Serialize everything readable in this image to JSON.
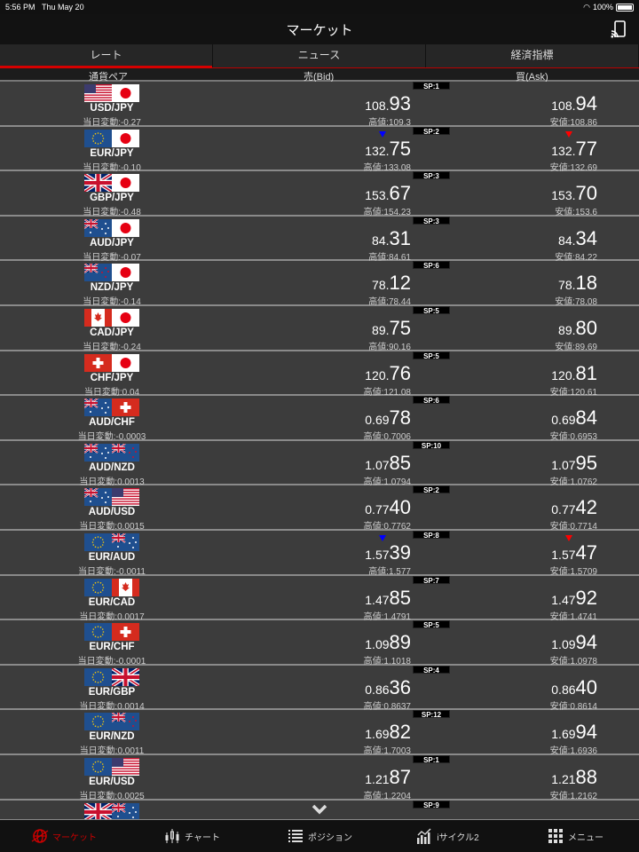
{
  "status": {
    "time": "5:56 PM",
    "date": "Thu May 20",
    "battery": "100%"
  },
  "header": {
    "title": "マーケット",
    "cast_icon": "cast-icon"
  },
  "tabs": [
    {
      "label": "レート",
      "active": true
    },
    {
      "label": "ニュース"
    },
    {
      "label": "経済指標"
    }
  ],
  "columns": {
    "pair": "通貨ペア",
    "bid": "売(Bid)",
    "ask": "買(Ask)"
  },
  "colors": {
    "accent": "#d60000",
    "down_bid": "#0000ff",
    "down_ask": "#ff0000"
  },
  "rows": [
    {
      "base": "USD",
      "quote": "JPY",
      "pair": "USD/JPY",
      "change": "当日変動:-0.27",
      "sp": "SP:1",
      "bid_small": "108.",
      "bid_big": "93",
      "high": "高値:109.3",
      "ask_small": "108.",
      "ask_big": "94",
      "low": "安値:108.86"
    },
    {
      "base": "EUR",
      "quote": "JPY",
      "pair": "EUR/JPY",
      "change": "当日変動:-0.10",
      "sp": "SP:2",
      "bid_small": "132.",
      "bid_big": "75",
      "high": "高値:133.08",
      "ask_small": "132.",
      "ask_big": "77",
      "low": "安値:132.69",
      "arrow": "down"
    },
    {
      "base": "GBP",
      "quote": "JPY",
      "pair": "GBP/JPY",
      "change": "当日変動:-0.48",
      "sp": "SP:3",
      "bid_small": "153.",
      "bid_big": "67",
      "high": "高値:154.23",
      "ask_small": "153.",
      "ask_big": "70",
      "low": "安値:153.6"
    },
    {
      "base": "AUD",
      "quote": "JPY",
      "pair": "AUD/JPY",
      "change": "当日変動:-0.07",
      "sp": "SP:3",
      "bid_small": "84.",
      "bid_big": "31",
      "high": "高値:84.61",
      "ask_small": "84.",
      "ask_big": "34",
      "low": "安値:84.22"
    },
    {
      "base": "NZD",
      "quote": "JPY",
      "pair": "NZD/JPY",
      "change": "当日変動:-0.14",
      "sp": "SP:6",
      "bid_small": "78.",
      "bid_big": "12",
      "high": "高値:78.44",
      "ask_small": "78.",
      "ask_big": "18",
      "low": "安値:78.08"
    },
    {
      "base": "CAD",
      "quote": "JPY",
      "pair": "CAD/JPY",
      "change": "当日変動:-0.24",
      "sp": "SP:5",
      "bid_small": "89.",
      "bid_big": "75",
      "high": "高値:90.16",
      "ask_small": "89.",
      "ask_big": "80",
      "low": "安値:89.69"
    },
    {
      "base": "CHF",
      "quote": "JPY",
      "pair": "CHF/JPY",
      "change": "当日変動:0.04",
      "sp": "SP:5",
      "bid_small": "120.",
      "bid_big": "76",
      "high": "高値:121.08",
      "ask_small": "120.",
      "ask_big": "81",
      "low": "安値:120.61"
    },
    {
      "base": "AUD",
      "quote": "CHF",
      "pair": "AUD/CHF",
      "change": "当日変動:-0.0003",
      "sp": "SP:6",
      "bid_small": "0.69",
      "bid_big": "78",
      "high": "高値:0.7006",
      "ask_small": "0.69",
      "ask_big": "84",
      "low": "安値:0.6953"
    },
    {
      "base": "AUD",
      "quote": "NZD",
      "pair": "AUD/NZD",
      "change": "当日変動:0.0013",
      "sp": "SP:10",
      "bid_small": "1.07",
      "bid_big": "85",
      "high": "高値:1.0794",
      "ask_small": "1.07",
      "ask_big": "95",
      "low": "安値:1.0762"
    },
    {
      "base": "AUD",
      "quote": "USD",
      "pair": "AUD/USD",
      "change": "当日変動:0.0015",
      "sp": "SP:2",
      "bid_small": "0.77",
      "bid_big": "40",
      "high": "高値:0.7762",
      "ask_small": "0.77",
      "ask_big": "42",
      "low": "安値:0.7714"
    },
    {
      "base": "EUR",
      "quote": "AUD",
      "pair": "EUR/AUD",
      "change": "当日変動:-0.0011",
      "sp": "SP:8",
      "bid_small": "1.57",
      "bid_big": "39",
      "high": "高値:1.577",
      "ask_small": "1.57",
      "ask_big": "47",
      "low": "安値:1.5709",
      "arrow": "down"
    },
    {
      "base": "EUR",
      "quote": "CAD",
      "pair": "EUR/CAD",
      "change": "当日変動:0.0017",
      "sp": "SP:7",
      "bid_small": "1.47",
      "bid_big": "85",
      "high": "高値:1.4791",
      "ask_small": "1.47",
      "ask_big": "92",
      "low": "安値:1.4741"
    },
    {
      "base": "EUR",
      "quote": "CHF",
      "pair": "EUR/CHF",
      "change": "当日変動:-0.0001",
      "sp": "SP:5",
      "bid_small": "1.09",
      "bid_big": "89",
      "high": "高値:1.1018",
      "ask_small": "1.09",
      "ask_big": "94",
      "low": "安値:1.0978"
    },
    {
      "base": "EUR",
      "quote": "GBP",
      "pair": "EUR/GBP",
      "change": "当日変動:0.0014",
      "sp": "SP:4",
      "bid_small": "0.86",
      "bid_big": "36",
      "high": "高値:0.8637",
      "ask_small": "0.86",
      "ask_big": "40",
      "low": "安値:0.8614"
    },
    {
      "base": "EUR",
      "quote": "NZD",
      "pair": "EUR/NZD",
      "change": "当日変動:0.0011",
      "sp": "SP:12",
      "bid_small": "1.69",
      "bid_big": "82",
      "high": "高値:1.7003",
      "ask_small": "1.69",
      "ask_big": "94",
      "low": "安値:1.6936"
    },
    {
      "base": "EUR",
      "quote": "USD",
      "pair": "EUR/USD",
      "change": "当日変動:0.0025",
      "sp": "SP:1",
      "bid_small": "1.21",
      "bid_big": "87",
      "high": "高値:1.2204",
      "ask_small": "1.21",
      "ask_big": "88",
      "low": "安値:1.2162"
    },
    {
      "base": "GBP",
      "quote": "AUD",
      "sp": "SP:9"
    }
  ],
  "bottom_nav": [
    {
      "label": "マーケット",
      "icon": "globe-icon",
      "active": true
    },
    {
      "label": "チャート",
      "icon": "candlestick-icon"
    },
    {
      "label": "ポジション",
      "icon": "list-icon"
    },
    {
      "label": "iサイクル2",
      "icon": "chart-bars-icon"
    },
    {
      "label": "メニュー",
      "icon": "grid-icon"
    }
  ]
}
